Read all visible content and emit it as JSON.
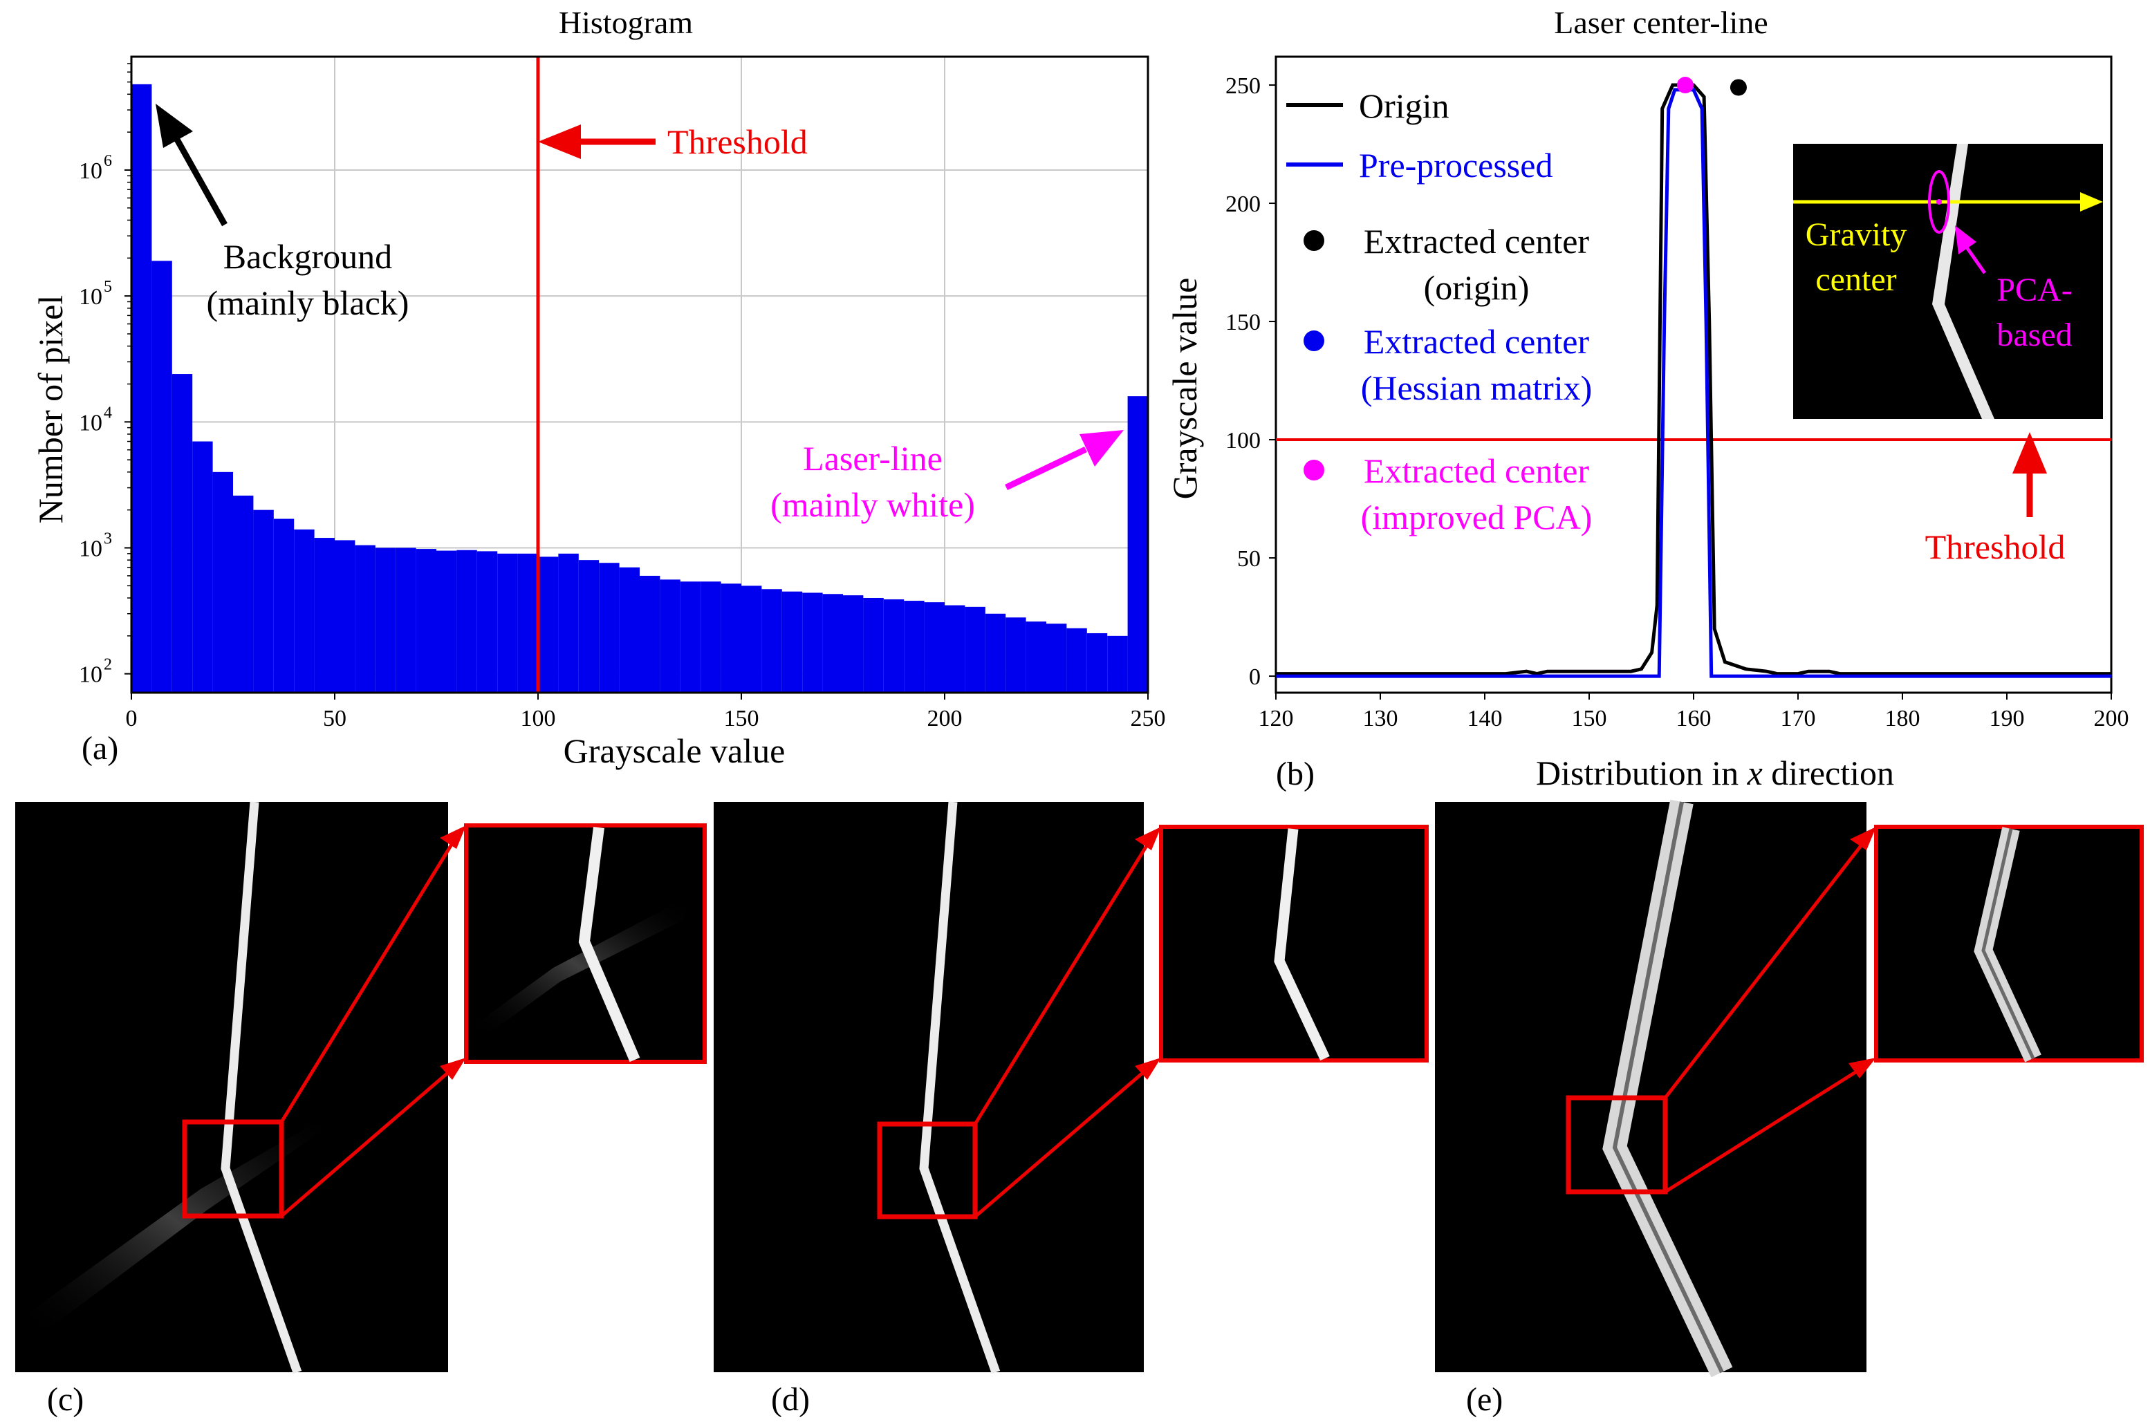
{
  "chart_data": [
    {
      "id": "a",
      "type": "bar",
      "panel_label": "(a)",
      "title": "Histogram",
      "xlabel": "Grayscale value",
      "ylabel": "Number of pixel",
      "xlim": [
        0,
        250
      ],
      "ylog": true,
      "ylim_log10": [
        1.85,
        6.9
      ],
      "xticks": [
        0,
        50,
        100,
        150,
        200,
        250
      ],
      "yticks": [
        {
          "log10": 2,
          "label": "10",
          "exp": "2"
        },
        {
          "log10": 3,
          "label": "10",
          "exp": "3"
        },
        {
          "log10": 4,
          "label": "10",
          "exp": "4"
        },
        {
          "log10": 5,
          "label": "10",
          "exp": "5"
        },
        {
          "log10": 6,
          "label": "10",
          "exp": "6"
        }
      ],
      "bin_width": 5,
      "bins_left": [
        0,
        5,
        10,
        15,
        20,
        25,
        30,
        35,
        40,
        45,
        50,
        55,
        60,
        65,
        70,
        75,
        80,
        85,
        90,
        95,
        100,
        105,
        110,
        115,
        120,
        125,
        130,
        135,
        140,
        145,
        150,
        155,
        160,
        165,
        170,
        175,
        180,
        185,
        190,
        195,
        200,
        205,
        210,
        215,
        220,
        225,
        230,
        235,
        240,
        245
      ],
      "values": [
        4800000,
        190000,
        24000,
        7000,
        4000,
        2600,
        2000,
        1700,
        1400,
        1200,
        1150,
        1050,
        1000,
        1000,
        980,
        950,
        960,
        940,
        900,
        900,
        850,
        900,
        800,
        760,
        700,
        600,
        560,
        540,
        540,
        520,
        500,
        470,
        450,
        440,
        430,
        420,
        400,
        390,
        380,
        370,
        350,
        340,
        300,
        280,
        260,
        250,
        230,
        210,
        200,
        16000
      ],
      "series_color": "#0000ee",
      "threshold": {
        "x": 100,
        "label": "Threshold",
        "color": "#ee0000"
      },
      "annotations": [
        {
          "line1": "Background",
          "line2": "(mainly black)",
          "color": "#000000"
        },
        {
          "line1": "Laser-line",
          "line2": "(mainly white)",
          "color": "#ff00ff"
        }
      ]
    },
    {
      "id": "b",
      "type": "line",
      "panel_label": "(b)",
      "title": "Laser center-line",
      "xlabel_parts": [
        "Distribution in ",
        "x",
        " direction"
      ],
      "ylabel": "Grayscale value",
      "xlim": [
        120,
        200
      ],
      "ylim": [
        -7,
        262
      ],
      "xticks": [
        120,
        130,
        140,
        150,
        160,
        170,
        180,
        190,
        200
      ],
      "yticks": [
        0,
        50,
        100,
        150,
        200,
        250
      ],
      "series": [
        {
          "name": "Origin",
          "color": "#000000",
          "x": [
            120,
            142,
            144,
            145,
            146,
            148,
            150,
            152,
            154,
            155,
            156,
            156.5,
            157,
            158,
            159,
            160,
            161,
            161.5,
            162,
            163,
            165,
            167,
            168,
            170,
            171,
            172,
            173,
            174,
            200
          ],
          "y": [
            1,
            1,
            2,
            1,
            2,
            2,
            2,
            2,
            2,
            3,
            10,
            30,
            240,
            250,
            250,
            250,
            245,
            150,
            20,
            6,
            3,
            2,
            1,
            1,
            2,
            2,
            2,
            1,
            1
          ]
        },
        {
          "name": "Pre-processed",
          "color": "#0000ee",
          "x": [
            120,
            156.7,
            157.2,
            157.6,
            158.2,
            159,
            160,
            160.8,
            161.2,
            161.7,
            162,
            200
          ],
          "y": [
            0,
            0,
            150,
            240,
            248,
            248,
            248,
            240,
            150,
            0,
            0,
            0
          ]
        }
      ],
      "points": [
        {
          "name": "Extracted center (origin)",
          "line1": "Extracted center",
          "line2": "(origin)",
          "x": 164.3,
          "y": 249,
          "color": "#000000"
        },
        {
          "name": "Extracted center (Hessian matrix)",
          "line1": "Extracted center",
          "line2": "(Hessian matrix)",
          "x": 159.2,
          "y": 250,
          "color": "#0000ee"
        },
        {
          "name": "Extracted center (improved PCA)",
          "line1": "Extracted center",
          "line2": "(improved PCA)",
          "x": 159.2,
          "y": 250,
          "color": "#ff00ff"
        }
      ],
      "threshold": {
        "y": 100,
        "label": "Threshold",
        "color": "#ee0000"
      },
      "inset_labels": {
        "gravity_line1": "Gravity",
        "gravity_line2": "center",
        "pca_line1": "PCA-",
        "pca_line2": "based"
      }
    }
  ],
  "panels": [
    {
      "id": "c",
      "label": "(c)"
    },
    {
      "id": "d",
      "label": "(d)"
    },
    {
      "id": "e",
      "label": "(e)"
    }
  ]
}
